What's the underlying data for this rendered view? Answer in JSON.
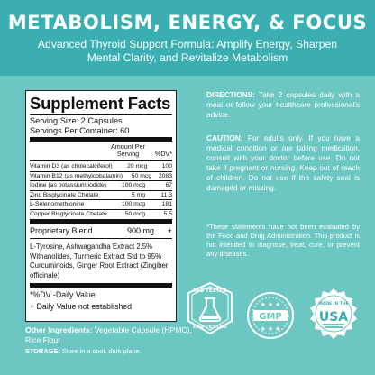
{
  "header": {
    "headline": "METABOLISM, ENERGY, & FOCUS",
    "subline": "Advanced Thyroid Support Formula: Amplify Energy, Sharpen Mental Clarity, and Revitalize Metabolism"
  },
  "facts": {
    "title": "Supplement Facts",
    "serving_size": "Serving Size: 2 Capsules",
    "servings_per_container": "Servings Per Container: 60",
    "amount_header": "Amount Per Serving",
    "dv_header": "%DV*",
    "rows": [
      {
        "name": "Vitamin D3 (as cholecalciferol)",
        "amount": "20 mcg",
        "dv": "100"
      },
      {
        "name": "Vitamin B12 (as methylcobalamin)",
        "amount": "50 mcg",
        "dv": "2083"
      },
      {
        "name": "Iodine (as potassium iodide)",
        "amount": "100 mcg",
        "dv": "67"
      },
      {
        "name": "Zinc Bisglycinate Chelate",
        "amount": "5 mg",
        "dv": "11.3"
      },
      {
        "name": "L-Selenomethionine",
        "amount": "100 mcg",
        "dv": "181"
      },
      {
        "name": "Copper Bisglycinate Chelate",
        "amount": "50 mcg",
        "dv": "5.5"
      }
    ],
    "blend_name": "Proprietary Blend",
    "blend_amount": "900 mg",
    "blend_dv": "+",
    "blend_desc": "L-Tyrosine, Ashwagandha Extract 2.5% Withanolides, Turmeric Extract Std to 95% Curcuminoids, Ginger Root Extract (Zingiber officinale)",
    "footnote_1": "*%DV -Daily Value",
    "footnote_2": "+ Daily Value not established"
  },
  "other": {
    "label": "Other Ingredients:",
    "text": " Vegetable Capsule (HPMC), Rice Flour"
  },
  "storage": {
    "label": "STORAGE:",
    "text": " Store in a cool, dark place."
  },
  "directions": {
    "label": "DIRECTIONS:",
    "text": " Take 2 capsules daily with a meal or follow your healthcare professional's advice."
  },
  "caution": {
    "label": "CAUTION:",
    "text": " For adults only. If you have a medical condition or are taking medication, consult with your doctor before use. Do not take if pregnant or nursing. Keep out of reach of children. Do not use if the safety seal is damaged or missing."
  },
  "disclaimer": "*These statements have not been evaluated by the Food and Drug Administration. This product is not intended to diagnose, treat, cure, or prevent any diseases.",
  "badges": {
    "lab": {
      "top": "LAB TESTED",
      "bottom": "LAB TESTED"
    },
    "gmp": {
      "text": "GMP"
    },
    "usa": {
      "small": "MADE IN THE",
      "big": "USA"
    }
  },
  "colors": {
    "background": "#6cc6c1",
    "header": "#3aaeb0",
    "text": "#ffffff"
  }
}
